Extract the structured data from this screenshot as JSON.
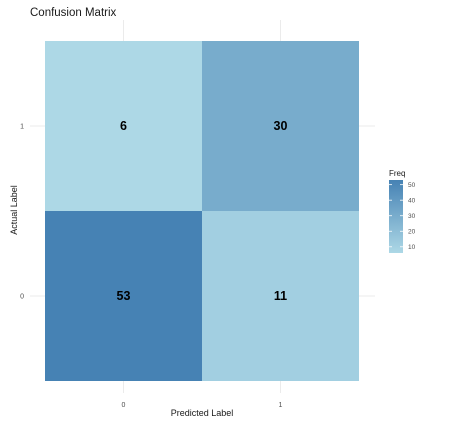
{
  "chart_data": {
    "type": "heatmap",
    "title": "Confusion Matrix",
    "xlabel": "Predicted Label",
    "ylabel": "Actual Label",
    "x_categories": [
      "0",
      "1"
    ],
    "y_categories": [
      "0",
      "1"
    ],
    "cells": [
      {
        "predicted": "0",
        "actual": "1",
        "value": 6
      },
      {
        "predicted": "1",
        "actual": "1",
        "value": 30
      },
      {
        "predicted": "0",
        "actual": "0",
        "value": 53
      },
      {
        "predicted": "1",
        "actual": "0",
        "value": 11
      }
    ],
    "legend": {
      "title": "Freq",
      "ticks": [
        10,
        20,
        30,
        40,
        50
      ],
      "range": [
        6,
        53
      ],
      "position": "right"
    },
    "colors": {
      "low": "#add8e6",
      "high": "#4682b4"
    },
    "grid": true
  }
}
